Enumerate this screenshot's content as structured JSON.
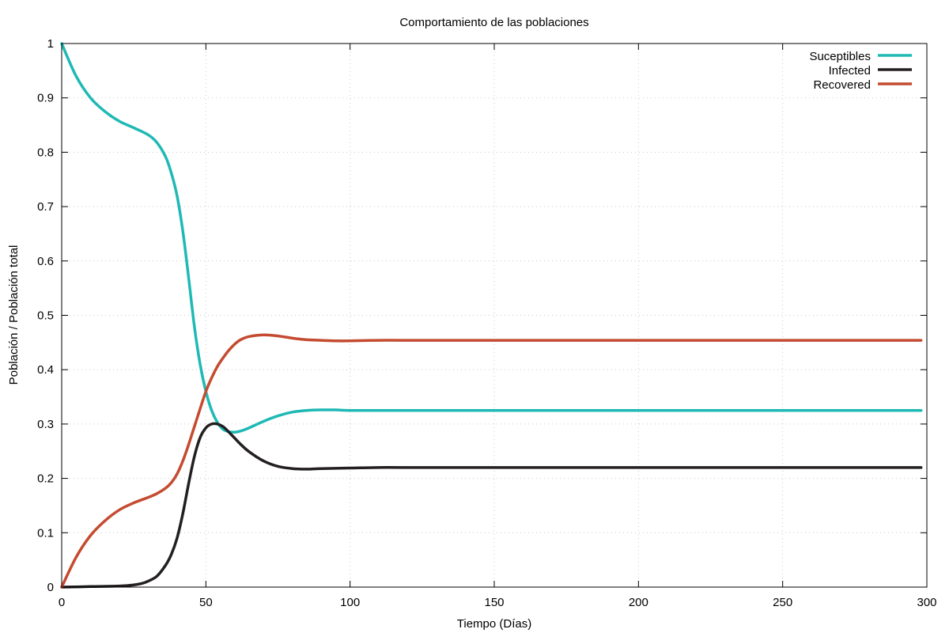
{
  "chart_data": {
    "type": "line",
    "title": "Comportamiento de las poblaciones",
    "xlabel": "Tiempo (Días)",
    "ylabel": "Población / Población total",
    "xlim": [
      0,
      300
    ],
    "ylim": [
      0,
      1
    ],
    "xticks": [
      0,
      50,
      100,
      150,
      200,
      250,
      300
    ],
    "yticks": [
      0,
      0.1,
      0.2,
      0.3,
      0.4,
      0.5,
      0.6,
      0.7,
      0.8,
      0.9,
      1
    ],
    "xtick_labels": [
      "0",
      "50",
      "100",
      "150",
      "200",
      "250",
      "300"
    ],
    "ytick_labels": [
      "0",
      "0.1",
      "0.2",
      "0.3",
      "0.4",
      "0.5",
      "0.6",
      "0.7",
      "0.8",
      "0.9",
      "1"
    ],
    "grid": true,
    "legend_position": "top-right",
    "series": [
      {
        "name": "Suceptibles",
        "color": "#1fb9b5",
        "x": [
          0,
          5,
          10,
          15,
          20,
          25,
          30,
          33,
          36,
          38,
          40,
          42,
          44,
          46,
          48,
          50,
          52,
          54,
          56,
          58,
          60,
          62,
          65,
          70,
          75,
          80,
          85,
          90,
          95,
          100,
          110,
          120,
          130,
          150,
          200,
          250,
          298
        ],
        "y": [
          1.0,
          0.94,
          0.9,
          0.875,
          0.857,
          0.845,
          0.832,
          0.818,
          0.792,
          0.762,
          0.72,
          0.655,
          0.57,
          0.48,
          0.41,
          0.36,
          0.325,
          0.303,
          0.29,
          0.286,
          0.285,
          0.287,
          0.293,
          0.305,
          0.315,
          0.322,
          0.325,
          0.326,
          0.326,
          0.325,
          0.325,
          0.325,
          0.325,
          0.325,
          0.325,
          0.325,
          0.325
        ]
      },
      {
        "name": "Infected",
        "color": "#231f20",
        "x": [
          0,
          10,
          20,
          25,
          28,
          30,
          33,
          36,
          38,
          40,
          42,
          44,
          46,
          48,
          50,
          52,
          54,
          56,
          58,
          60,
          62,
          65,
          70,
          75,
          80,
          85,
          90,
          100,
          110,
          120,
          150,
          200,
          250,
          298
        ],
        "y": [
          0.0,
          0.001,
          0.002,
          0.004,
          0.007,
          0.011,
          0.02,
          0.04,
          0.06,
          0.09,
          0.135,
          0.19,
          0.24,
          0.275,
          0.293,
          0.3,
          0.3,
          0.295,
          0.285,
          0.274,
          0.263,
          0.249,
          0.232,
          0.222,
          0.218,
          0.217,
          0.218,
          0.219,
          0.22,
          0.22,
          0.22,
          0.22,
          0.22,
          0.22
        ]
      },
      {
        "name": "Recovered",
        "color": "#c44b30",
        "x": [
          0,
          5,
          10,
          15,
          20,
          25,
          30,
          33,
          36,
          38,
          40,
          42,
          44,
          46,
          48,
          50,
          52,
          54,
          56,
          58,
          60,
          62,
          65,
          70,
          75,
          80,
          85,
          90,
          95,
          100,
          110,
          120,
          150,
          200,
          250,
          298
        ],
        "y": [
          0.0,
          0.055,
          0.095,
          0.122,
          0.142,
          0.155,
          0.165,
          0.172,
          0.182,
          0.192,
          0.208,
          0.232,
          0.262,
          0.295,
          0.328,
          0.36,
          0.385,
          0.406,
          0.422,
          0.436,
          0.447,
          0.455,
          0.461,
          0.464,
          0.462,
          0.458,
          0.455,
          0.454,
          0.453,
          0.453,
          0.454,
          0.454,
          0.454,
          0.454,
          0.454,
          0.454
        ]
      }
    ]
  }
}
